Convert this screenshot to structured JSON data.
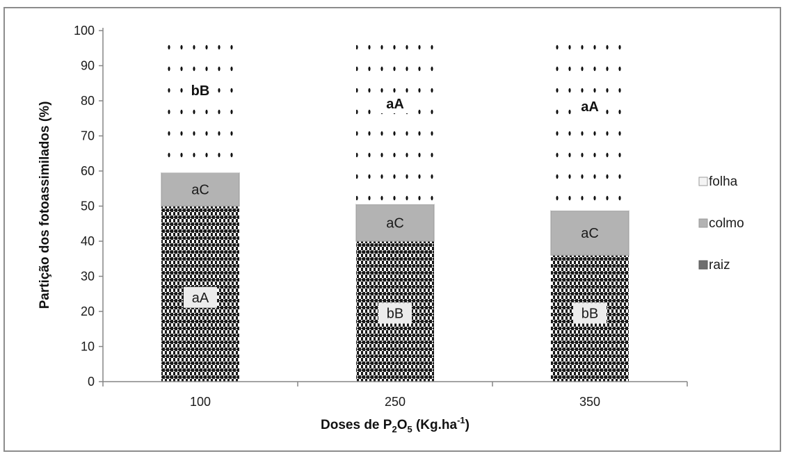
{
  "chart_data": {
    "type": "bar",
    "stacked": true,
    "title": "",
    "xlabel": {
      "prefix": "Doses  de P",
      "sub1": "2",
      "mid": "O",
      "sub2": "5",
      "suffix": " (Kg.ha",
      "sup": "-1",
      "end": ")"
    },
    "ylabel": "Partição dos fotoassimilados  (%)",
    "categories": [
      "100",
      "250",
      "350"
    ],
    "ylim": [
      0,
      100
    ],
    "yticks": [
      0,
      10,
      20,
      30,
      40,
      50,
      60,
      70,
      80,
      90,
      100
    ],
    "grid": false,
    "legend_position": "right",
    "series": [
      {
        "name": "raiz",
        "values": [
          50,
          40,
          36
        ],
        "labels": [
          "aA",
          "bB",
          "bB"
        ],
        "color": "#6e6e6e"
      },
      {
        "name": "colmo",
        "values": [
          9.5,
          10.5,
          12.7
        ],
        "labels": [
          "aC",
          "aC",
          "aC"
        ],
        "color": "#b3b3b3"
      },
      {
        "name": "folha",
        "values": [
          40.5,
          49.5,
          51.3
        ],
        "labels": [
          "bB",
          "aA",
          "aA"
        ],
        "color": "#f2f2f2"
      }
    ],
    "legend": [
      "folha",
      "colmo",
      "raiz"
    ]
  }
}
